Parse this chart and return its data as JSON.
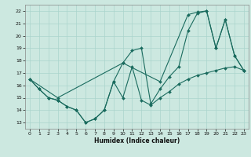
{
  "xlabel": "Humidex (Indice chaleur)",
  "bg_color": "#cce8e0",
  "grid_color": "#aad4cc",
  "line_color": "#1a6b5e",
  "xlim": [
    -0.5,
    23.5
  ],
  "ylim": [
    12.5,
    22.5
  ],
  "xticks": [
    0,
    1,
    2,
    3,
    4,
    5,
    6,
    7,
    8,
    9,
    10,
    11,
    12,
    13,
    14,
    15,
    16,
    17,
    18,
    19,
    20,
    21,
    22,
    23
  ],
  "yticks": [
    13,
    14,
    15,
    16,
    17,
    18,
    19,
    20,
    21,
    22
  ],
  "line1_x": [
    0,
    1,
    2,
    3,
    4,
    5,
    6,
    7,
    8,
    9,
    10,
    11,
    12,
    13,
    14,
    15,
    16,
    17,
    18,
    19,
    20,
    21,
    22,
    23
  ],
  "line1_y": [
    16.5,
    15.7,
    15.0,
    14.8,
    14.3,
    14.0,
    13.0,
    13.3,
    14.0,
    16.3,
    15.0,
    17.5,
    14.8,
    14.4,
    15.0,
    15.5,
    16.1,
    16.5,
    16.8,
    17.0,
    17.2,
    17.4,
    17.5,
    17.2
  ],
  "line2_x": [
    0,
    1,
    2,
    3,
    4,
    5,
    6,
    7,
    8,
    9,
    10,
    11,
    12,
    13,
    14,
    15,
    16,
    17,
    18,
    19,
    20,
    21,
    22,
    23
  ],
  "line2_y": [
    16.5,
    15.7,
    15.0,
    14.8,
    14.3,
    14.0,
    13.0,
    13.3,
    14.0,
    16.3,
    17.8,
    18.8,
    19.0,
    14.5,
    15.7,
    16.7,
    17.5,
    20.4,
    21.8,
    22.0,
    19.0,
    21.3,
    18.4,
    17.2
  ],
  "line3_x": [
    0,
    3,
    10,
    14,
    17,
    18,
    19,
    20,
    21,
    22,
    23
  ],
  "line3_y": [
    16.5,
    15.0,
    17.8,
    16.3,
    21.7,
    21.9,
    22.0,
    19.0,
    21.3,
    18.4,
    17.2
  ]
}
